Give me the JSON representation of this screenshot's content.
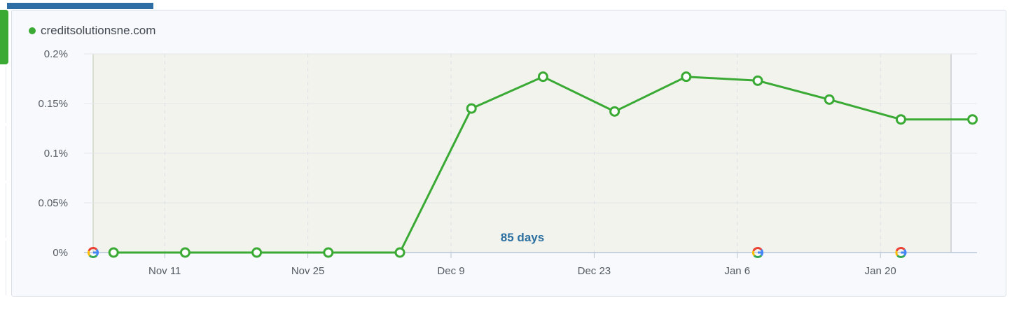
{
  "colors": {
    "series": "#3aaa35",
    "plot_band": "#f1f3ec",
    "annotation": "#2c6fa0"
  },
  "chart_data": {
    "type": "line",
    "title": "",
    "xlabel": "",
    "ylabel": "",
    "ylim": [
      0,
      0.2
    ],
    "y_format": "percent",
    "y_ticks": [
      "0%",
      "0.05%",
      "0.1%",
      "0.15%",
      "0.2%"
    ],
    "x_tick_labels": [
      "Nov 11",
      "Nov 25",
      "Dec 9",
      "Dec 23",
      "Jan 6",
      "Jan 20"
    ],
    "grid": true,
    "legend_position": "top-left",
    "series": [
      {
        "name": "creditsolutionsne.com",
        "color": "#3aaa35",
        "x": [
          "Nov 6",
          "Nov 13",
          "Nov 20",
          "Nov 27",
          "Dec 4",
          "Dec 11",
          "Dec 18",
          "Dec 25",
          "Jan 1",
          "Jan 8",
          "Jan 15",
          "Jan 22",
          "Jan 29"
        ],
        "y": [
          0,
          0,
          0,
          0,
          0,
          0.145,
          0.177,
          0.142,
          0.177,
          0.173,
          0.154,
          0.134,
          0.134
        ]
      }
    ],
    "annotations": [
      {
        "text": "85 days"
      }
    ],
    "google_update_markers": [
      "Nov 4",
      "Jan 8",
      "Jan 22"
    ]
  }
}
